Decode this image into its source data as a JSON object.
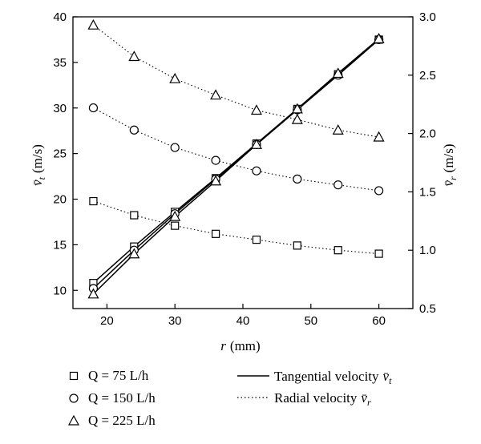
{
  "chart_data": {
    "type": "scatter",
    "x": [
      18,
      24,
      30,
      36,
      42,
      48,
      54,
      60
    ],
    "xlim": [
      15,
      65
    ],
    "xticks": [
      20,
      30,
      40,
      50,
      60
    ],
    "ylim_left": [
      8,
      40
    ],
    "yticks_left": [
      10,
      15,
      20,
      25,
      30,
      35,
      40
    ],
    "ylim_right": [
      0.5,
      3.0
    ],
    "yticks_right": [
      "0.5",
      "1.0",
      "1.5",
      "2.0",
      "2.5",
      "3.0"
    ],
    "xlabel": {
      "var": "r",
      "unit": "(mm)"
    },
    "ylabel_left": {
      "var": "v̄",
      "sub": "t",
      "unit": "(m/s)"
    },
    "ylabel_right": {
      "var": "v̄",
      "sub": "r",
      "unit": "(m/s)"
    },
    "series": [
      {
        "name": "Q = 75 L/h",
        "marker": "square",
        "tangential": [
          10.8,
          14.8,
          18.6,
          22.3,
          26.1,
          29.9,
          33.7,
          37.5
        ],
        "radial": [
          1.42,
          1.3,
          1.21,
          1.14,
          1.09,
          1.04,
          1.0,
          0.97
        ]
      },
      {
        "name": "Q = 150 L/h",
        "marker": "circle",
        "tangential": [
          10.2,
          14.4,
          18.4,
          22.2,
          26.0,
          29.8,
          33.6,
          37.5
        ],
        "radial": [
          2.22,
          2.03,
          1.88,
          1.77,
          1.68,
          1.61,
          1.56,
          1.51
        ]
      },
      {
        "name": "Q = 225 L/h",
        "marker": "triangle",
        "tangential": [
          9.6,
          14.0,
          18.1,
          22.0,
          26.0,
          29.9,
          33.8,
          37.6
        ],
        "radial": [
          2.93,
          2.66,
          2.47,
          2.33,
          2.2,
          2.12,
          2.03,
          1.97
        ]
      }
    ],
    "legend": {
      "placement": "bottom",
      "line_items": [
        {
          "style": "solid",
          "label": "Tangential velocity",
          "symbol": "v̄",
          "sub": "t"
        },
        {
          "style": "dotted",
          "label": "Radial velocity",
          "symbol": "v̄",
          "sub": "r"
        }
      ]
    },
    "grid": false
  }
}
